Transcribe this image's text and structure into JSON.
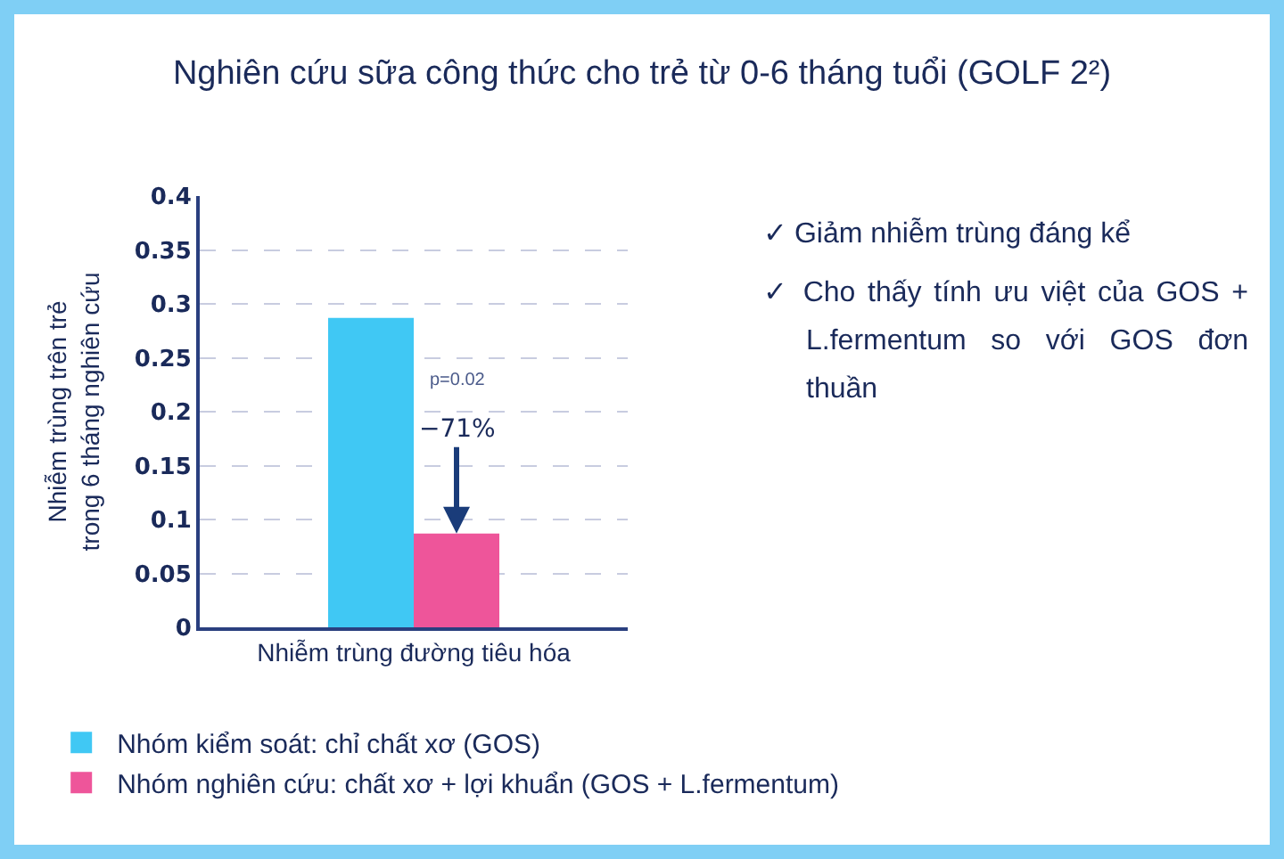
{
  "chart_data": {
    "type": "bar",
    "title": "Nghiên cứu sữa công thức cho trẻ từ 0-6 tháng tuổi (GOLF 2²)",
    "ylabel": "Nhiễm trùng trên trẻ\ntrong 6 tháng nghiên cứu",
    "categories": [
      "Nhiễm trùng đường tiêu hóa"
    ],
    "series": [
      {
        "name": "Nhóm kiểm soát: chỉ chất xơ (GOS)",
        "color": "#40c8f4",
        "values": [
          0.287
        ]
      },
      {
        "name": "Nhóm nghiên cứu: chất xơ + lợi khuẩn (GOS + L.fermentum)",
        "color": "#ee559a",
        "values": [
          0.087
        ]
      }
    ],
    "ylim": [
      0,
      0.4
    ],
    "yticks": [
      0,
      0.05,
      0.1,
      0.15,
      0.2,
      0.25,
      0.3,
      0.35,
      0.4
    ],
    "grid": "y",
    "legend": "bottom",
    "annotations": [
      "−71%",
      "p=0.02",
      "✓ Giảm nhiễm trùng đáng kể",
      "✓ Cho thấy tính ưu việt của GOS + L.fermentum so với GOS đơn thuần"
    ]
  }
}
